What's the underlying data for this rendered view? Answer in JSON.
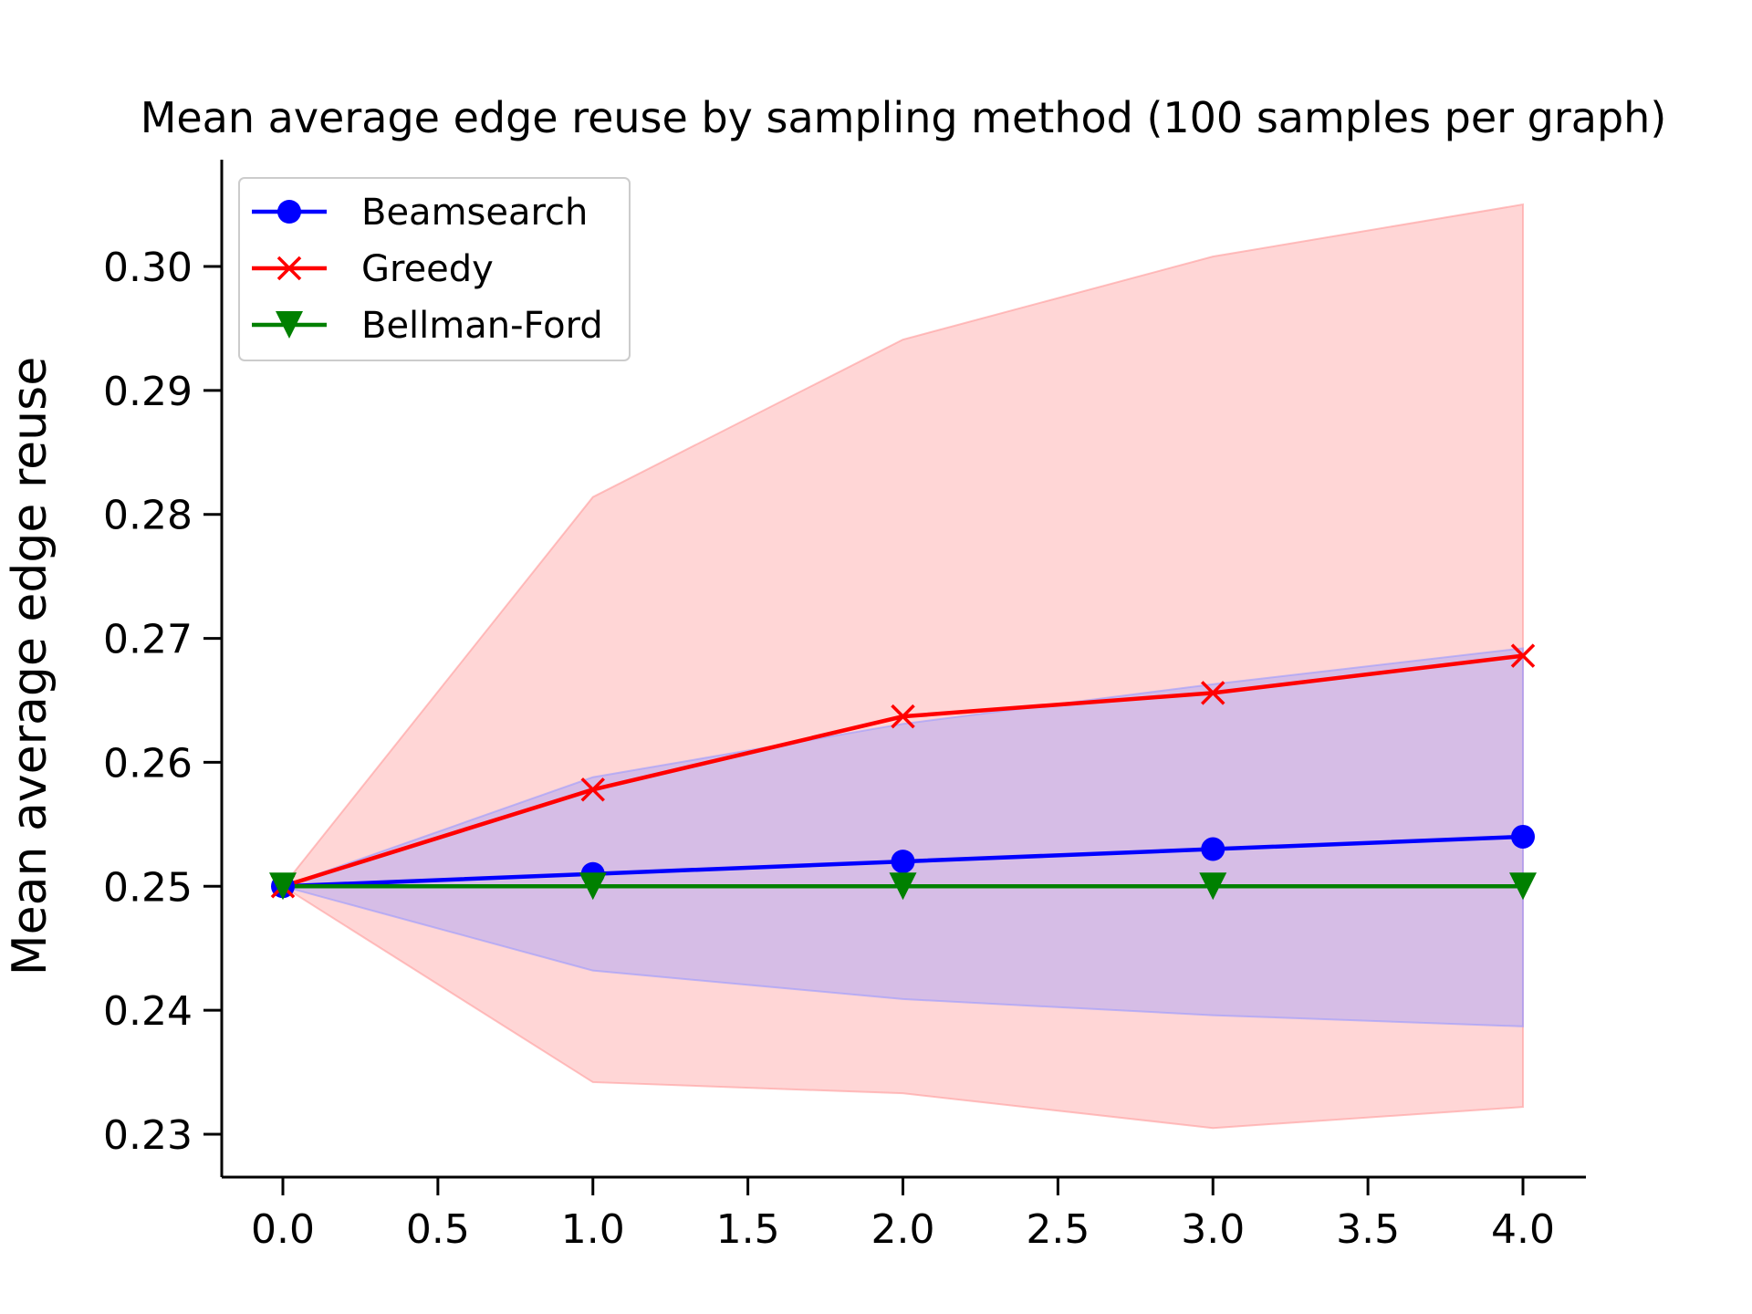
{
  "chart_data": {
    "type": "line",
    "title": "Mean average edge reuse by sampling method (100 samples per graph)",
    "xlabel": "",
    "ylabel": "Mean average edge reuse",
    "xlim": [
      -0.2,
      4.2
    ],
    "ylim": [
      0.2265,
      0.3083
    ],
    "xticks": [
      "0.0",
      "0.5",
      "1.0",
      "1.5",
      "2.0",
      "2.5",
      "3.0",
      "3.5",
      "4.0"
    ],
    "yticks": [
      "0.23",
      "0.24",
      "0.25",
      "0.26",
      "0.27",
      "0.28",
      "0.29",
      "0.30"
    ],
    "x": [
      0,
      1,
      2,
      3,
      4
    ],
    "legend_position": "top-left",
    "grid": false,
    "series": [
      {
        "name": "Beamsearch",
        "color": "#0000ff",
        "marker": "circle",
        "values": [
          0.25,
          0.251,
          0.252,
          0.253,
          0.254
        ],
        "band_lower": [
          0.25,
          0.2432,
          0.2409,
          0.2396,
          0.2387
        ],
        "band_upper": [
          0.25,
          0.2588,
          0.2631,
          0.2663,
          0.2692
        ]
      },
      {
        "name": "Greedy",
        "color": "#ff0000",
        "marker": "x",
        "values": [
          0.25,
          0.2578,
          0.2637,
          0.2656,
          0.2686
        ],
        "band_lower": [
          0.25,
          0.2342,
          0.2333,
          0.2305,
          0.2322
        ],
        "band_upper": [
          0.25,
          0.2814,
          0.2941,
          0.3008,
          0.305
        ]
      },
      {
        "name": "Bellman-Ford",
        "color": "#008000",
        "marker": "triangle-down",
        "values": [
          0.25,
          0.25,
          0.25,
          0.25,
          0.25
        ]
      }
    ]
  }
}
